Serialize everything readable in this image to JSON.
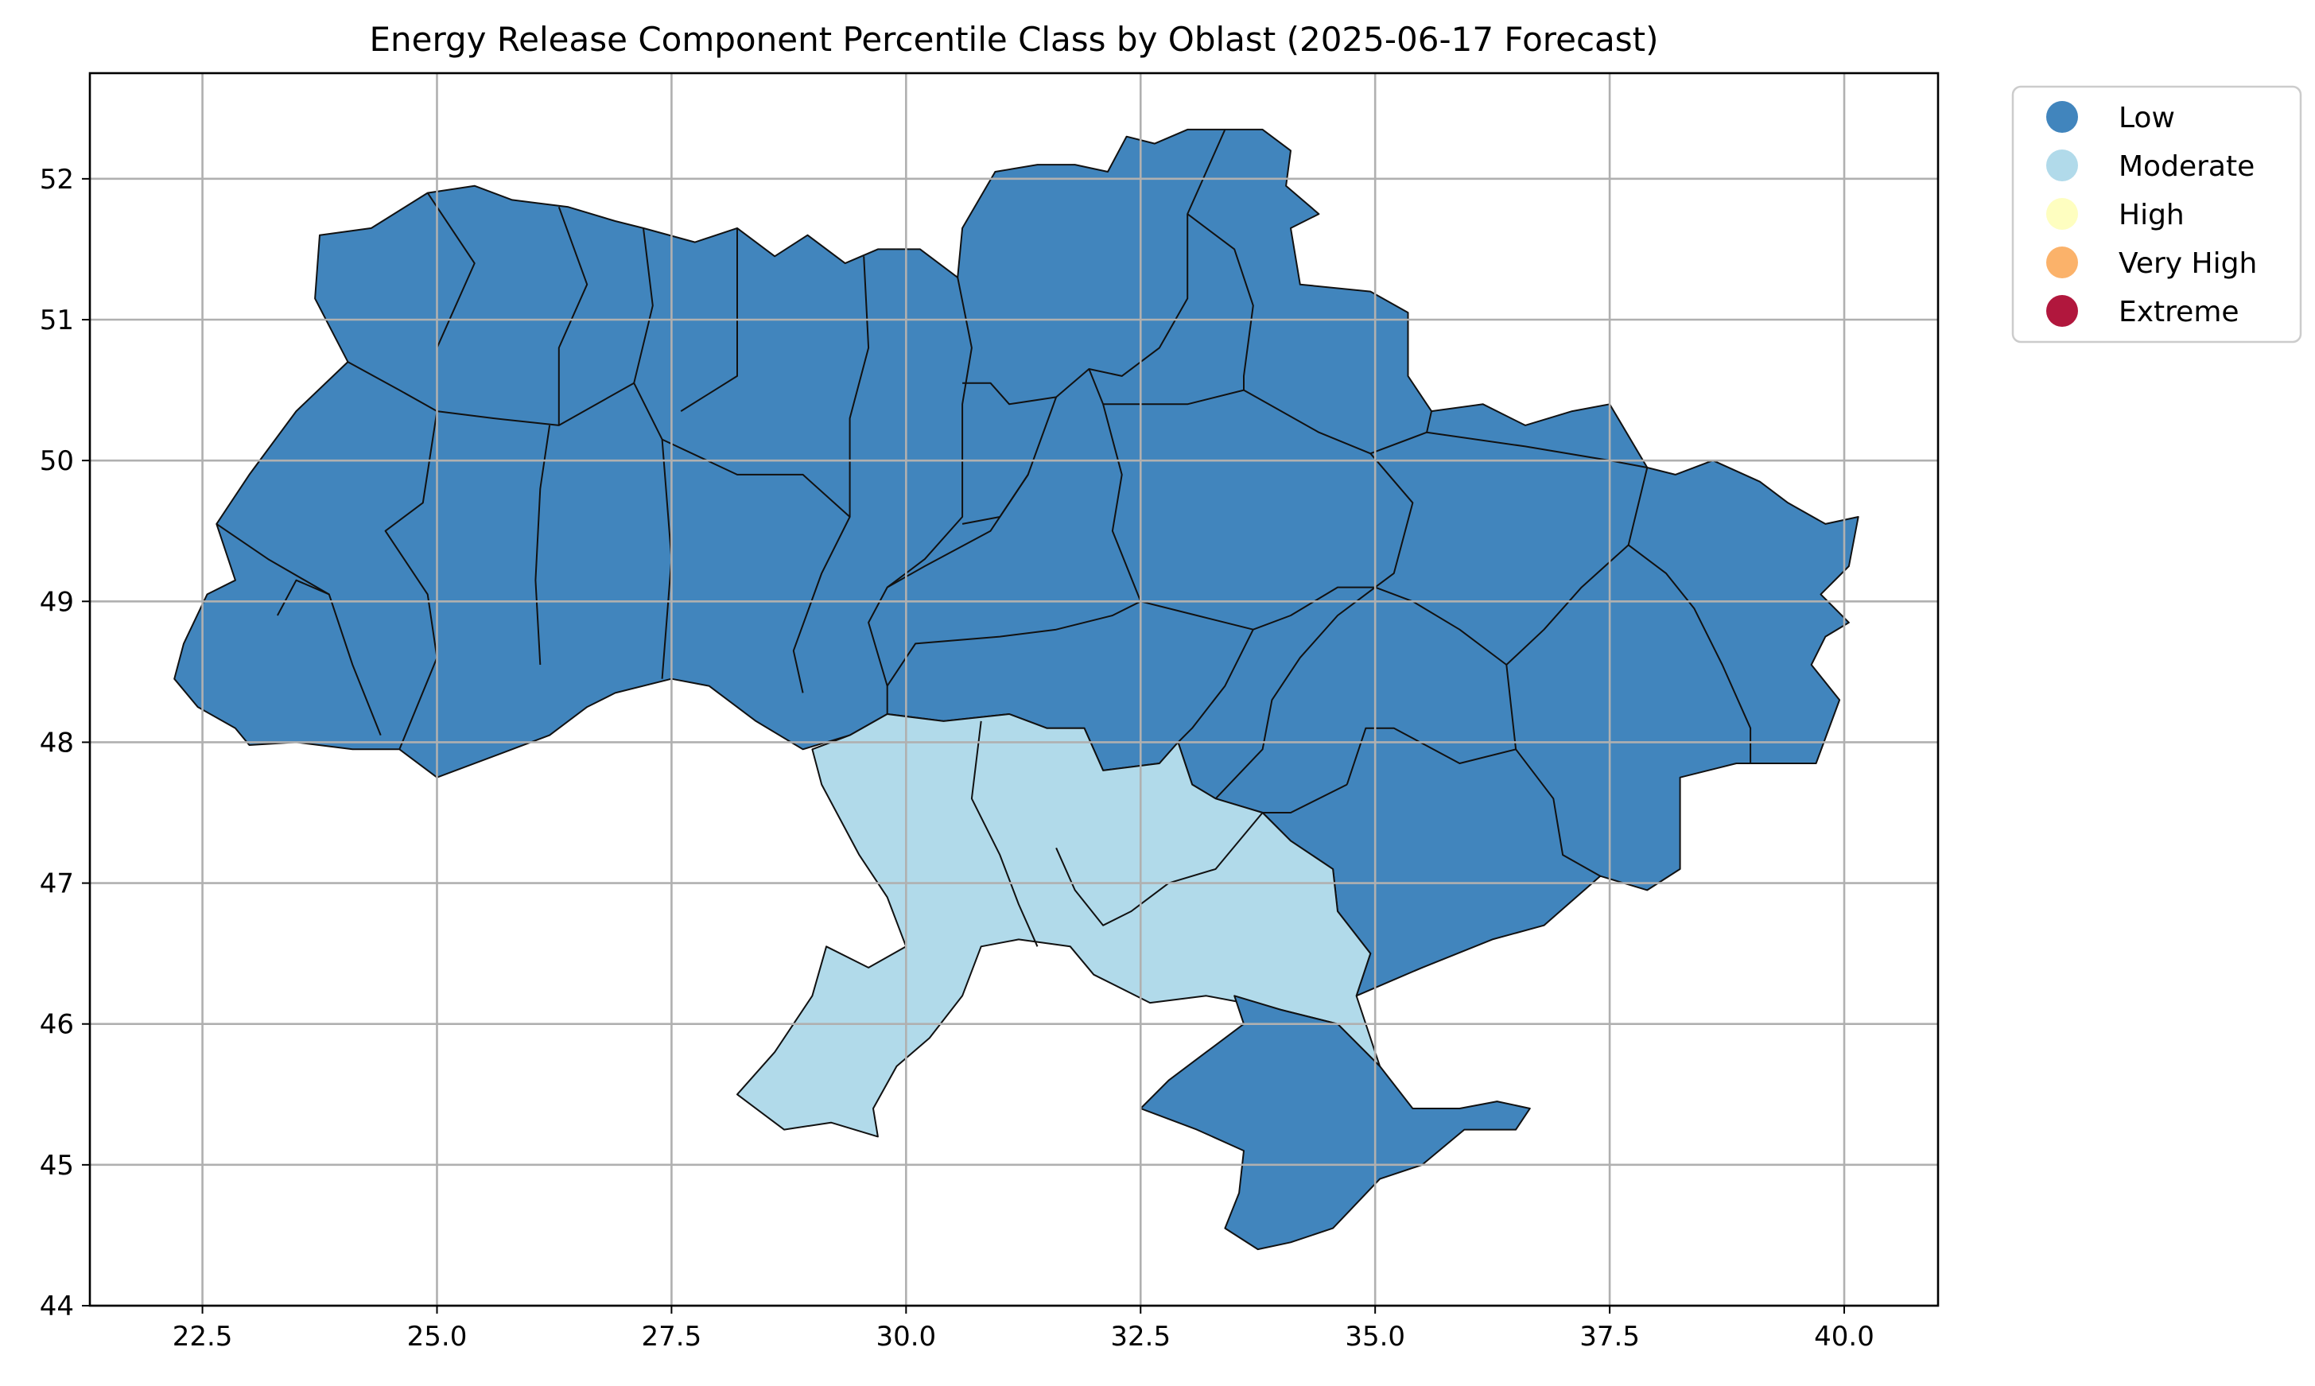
{
  "title": "Energy Release Component Percentile Class by Oblast (2025-06-17 Forecast)",
  "x_ticks": [
    "22.5",
    "25.0",
    "27.5",
    "30.0",
    "32.5",
    "35.0",
    "37.5",
    "40.0"
  ],
  "y_ticks": [
    "44",
    "45",
    "46",
    "47",
    "48",
    "49",
    "50",
    "51",
    "52"
  ],
  "legend": [
    {
      "label": "Low",
      "color": "#4185bd"
    },
    {
      "label": "Moderate",
      "color": "#b1daea"
    },
    {
      "label": "High",
      "color": "#fefec0"
    },
    {
      "label": "Very High",
      "color": "#fbb26a"
    },
    {
      "label": "Extreme",
      "color": "#b1173d"
    }
  ],
  "chart_data": {
    "type": "choropleth",
    "title": "Energy Release Component Percentile Class by Oblast (2025-06-17 Forecast)",
    "xlabel": "",
    "ylabel": "",
    "xlim": [
      21.3,
      41.0
    ],
    "ylim": [
      44.0,
      52.75
    ],
    "x_ticks": [
      22.5,
      25.0,
      27.5,
      30.0,
      32.5,
      35.0,
      37.5,
      40.0
    ],
    "y_ticks": [
      44,
      45,
      46,
      47,
      48,
      49,
      50,
      51,
      52
    ],
    "grid": true,
    "legend_position": "outside-top-right",
    "classes": [
      "Low",
      "Moderate",
      "High",
      "Very High",
      "Extreme"
    ],
    "class_colors": {
      "Low": "#4185bd",
      "Moderate": "#b1daea",
      "High": "#fefec0",
      "Very High": "#fbb26a",
      "Extreme": "#b1173d"
    },
    "region_classes": {
      "northern-western-central-eastern-oblasts": "Low",
      "crimea": "Low",
      "odesa": "Moderate",
      "mykolaiv": "Moderate",
      "kherson": "Moderate"
    }
  }
}
